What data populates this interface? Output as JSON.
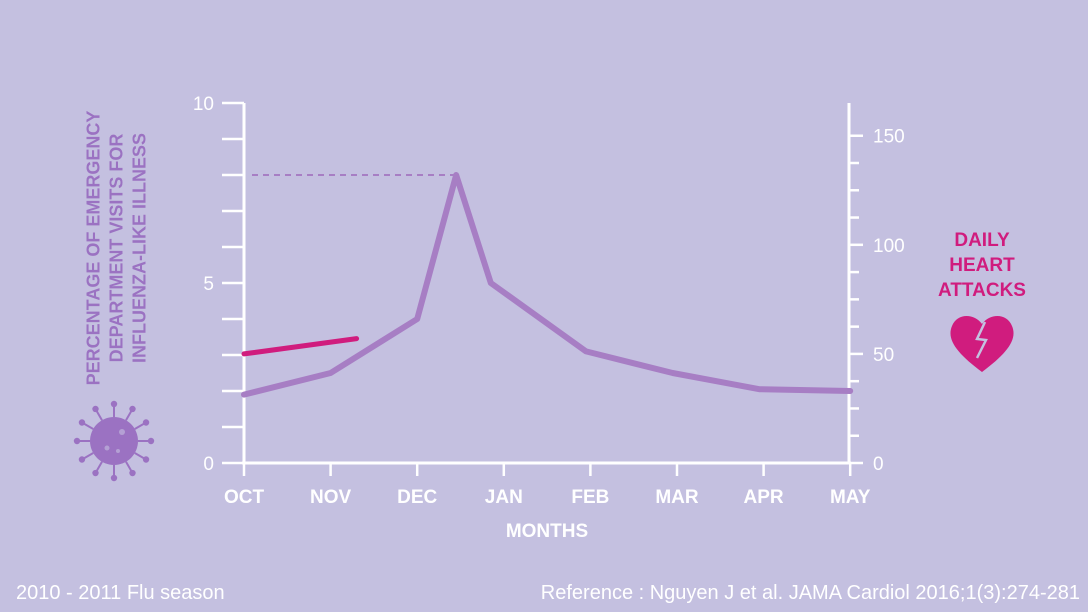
{
  "colors": {
    "background": "#c4c0e0",
    "axis": "#ffffff",
    "flu_line": "#a77ec4",
    "heart_line": "#d01c7e",
    "virus": "#9b72c2",
    "heart_icon": "#d01c7e"
  },
  "virus_icon": "virus-icon",
  "heart_icon_name": "broken-heart-icon",
  "footer": {
    "season": "2010 - 2011 Flu season",
    "reference": "Reference : Nguyen J et al. JAMA Cardiol 2016;1(3):274-281"
  },
  "labels": {
    "left_axis": [
      "PERCENTAGE OF EMERGENCY",
      "DEPARTMENT VISITS FOR",
      "INFLUENZA-LIKE ILLNESS"
    ],
    "right_axis": [
      "DAILY",
      "HEART",
      "ATTACKS"
    ]
  },
  "chart_data": {
    "type": "line",
    "xlabel": "MONTHS",
    "categories": [
      "OCT",
      "NOV",
      "DEC",
      "JAN",
      "FEB",
      "MAR",
      "APR",
      "MAY"
    ],
    "y_left": {
      "label": "PERCENTAGE OF EMERGENCY DEPARTMENT VISITS FOR INFLUENZA-LIKE ILLNESS",
      "range": [
        0,
        10
      ],
      "ticks": [
        0,
        5,
        10
      ]
    },
    "y_right": {
      "label": "DAILY HEART ATTACKS",
      "range": [
        0,
        165
      ],
      "ticks": [
        0,
        50,
        100,
        150
      ]
    },
    "series": [
      {
        "name": "Influenza-like illness ED visits (%)",
        "axis": "left",
        "x": [
          0,
          1,
          2,
          2.45,
          2.85,
          3.95,
          4.95,
          5.95,
          7
        ],
        "y": [
          1.9,
          2.5,
          4.0,
          8.0,
          5.0,
          3.1,
          2.5,
          2.05,
          2.0
        ]
      },
      {
        "name": "Daily heart attacks",
        "axis": "right",
        "x": [
          0,
          1.3
        ],
        "y": [
          50,
          57
        ]
      }
    ],
    "annotations": [
      {
        "type": "dashed-reference",
        "axis": "left",
        "y": 8.0,
        "x_from": 0,
        "x_to": 2.45
      }
    ]
  }
}
